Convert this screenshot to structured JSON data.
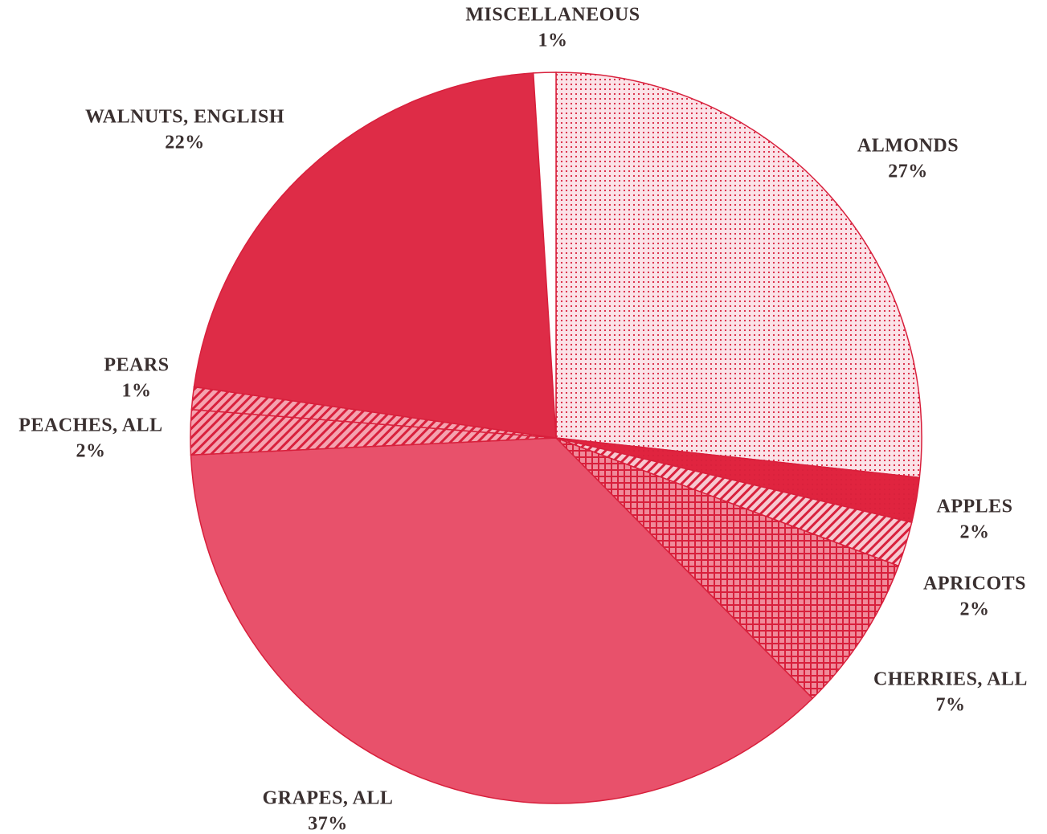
{
  "chart_data": {
    "type": "pie",
    "categories": [
      "ALMONDS",
      "APPLES",
      "APRICOTS",
      "CHERRIES, ALL",
      "GRAPES, ALL",
      "PEACHES, ALL",
      "PEARS",
      "WALNUTS, ENGLISH",
      "MISCELLANEOUS"
    ],
    "values": [
      27,
      2,
      2,
      7,
      37,
      2,
      1,
      22,
      1
    ],
    "value_labels": [
      "27%",
      "2%",
      "2%",
      "7%",
      "37%",
      "2%",
      "1%",
      "22%",
      "1%"
    ],
    "colors": [
      "#fbe3e8",
      "#e0243f",
      "#f7c9d1",
      "#f08a9a",
      "#e8516b",
      "#f5a3b0",
      "#f5a3b0",
      "#de2c47",
      "#ffffff"
    ],
    "patterns": [
      "dots",
      "dots",
      "hatch",
      "crosshatch",
      "none",
      "hatch",
      "hatch",
      "none",
      "none"
    ]
  }
}
